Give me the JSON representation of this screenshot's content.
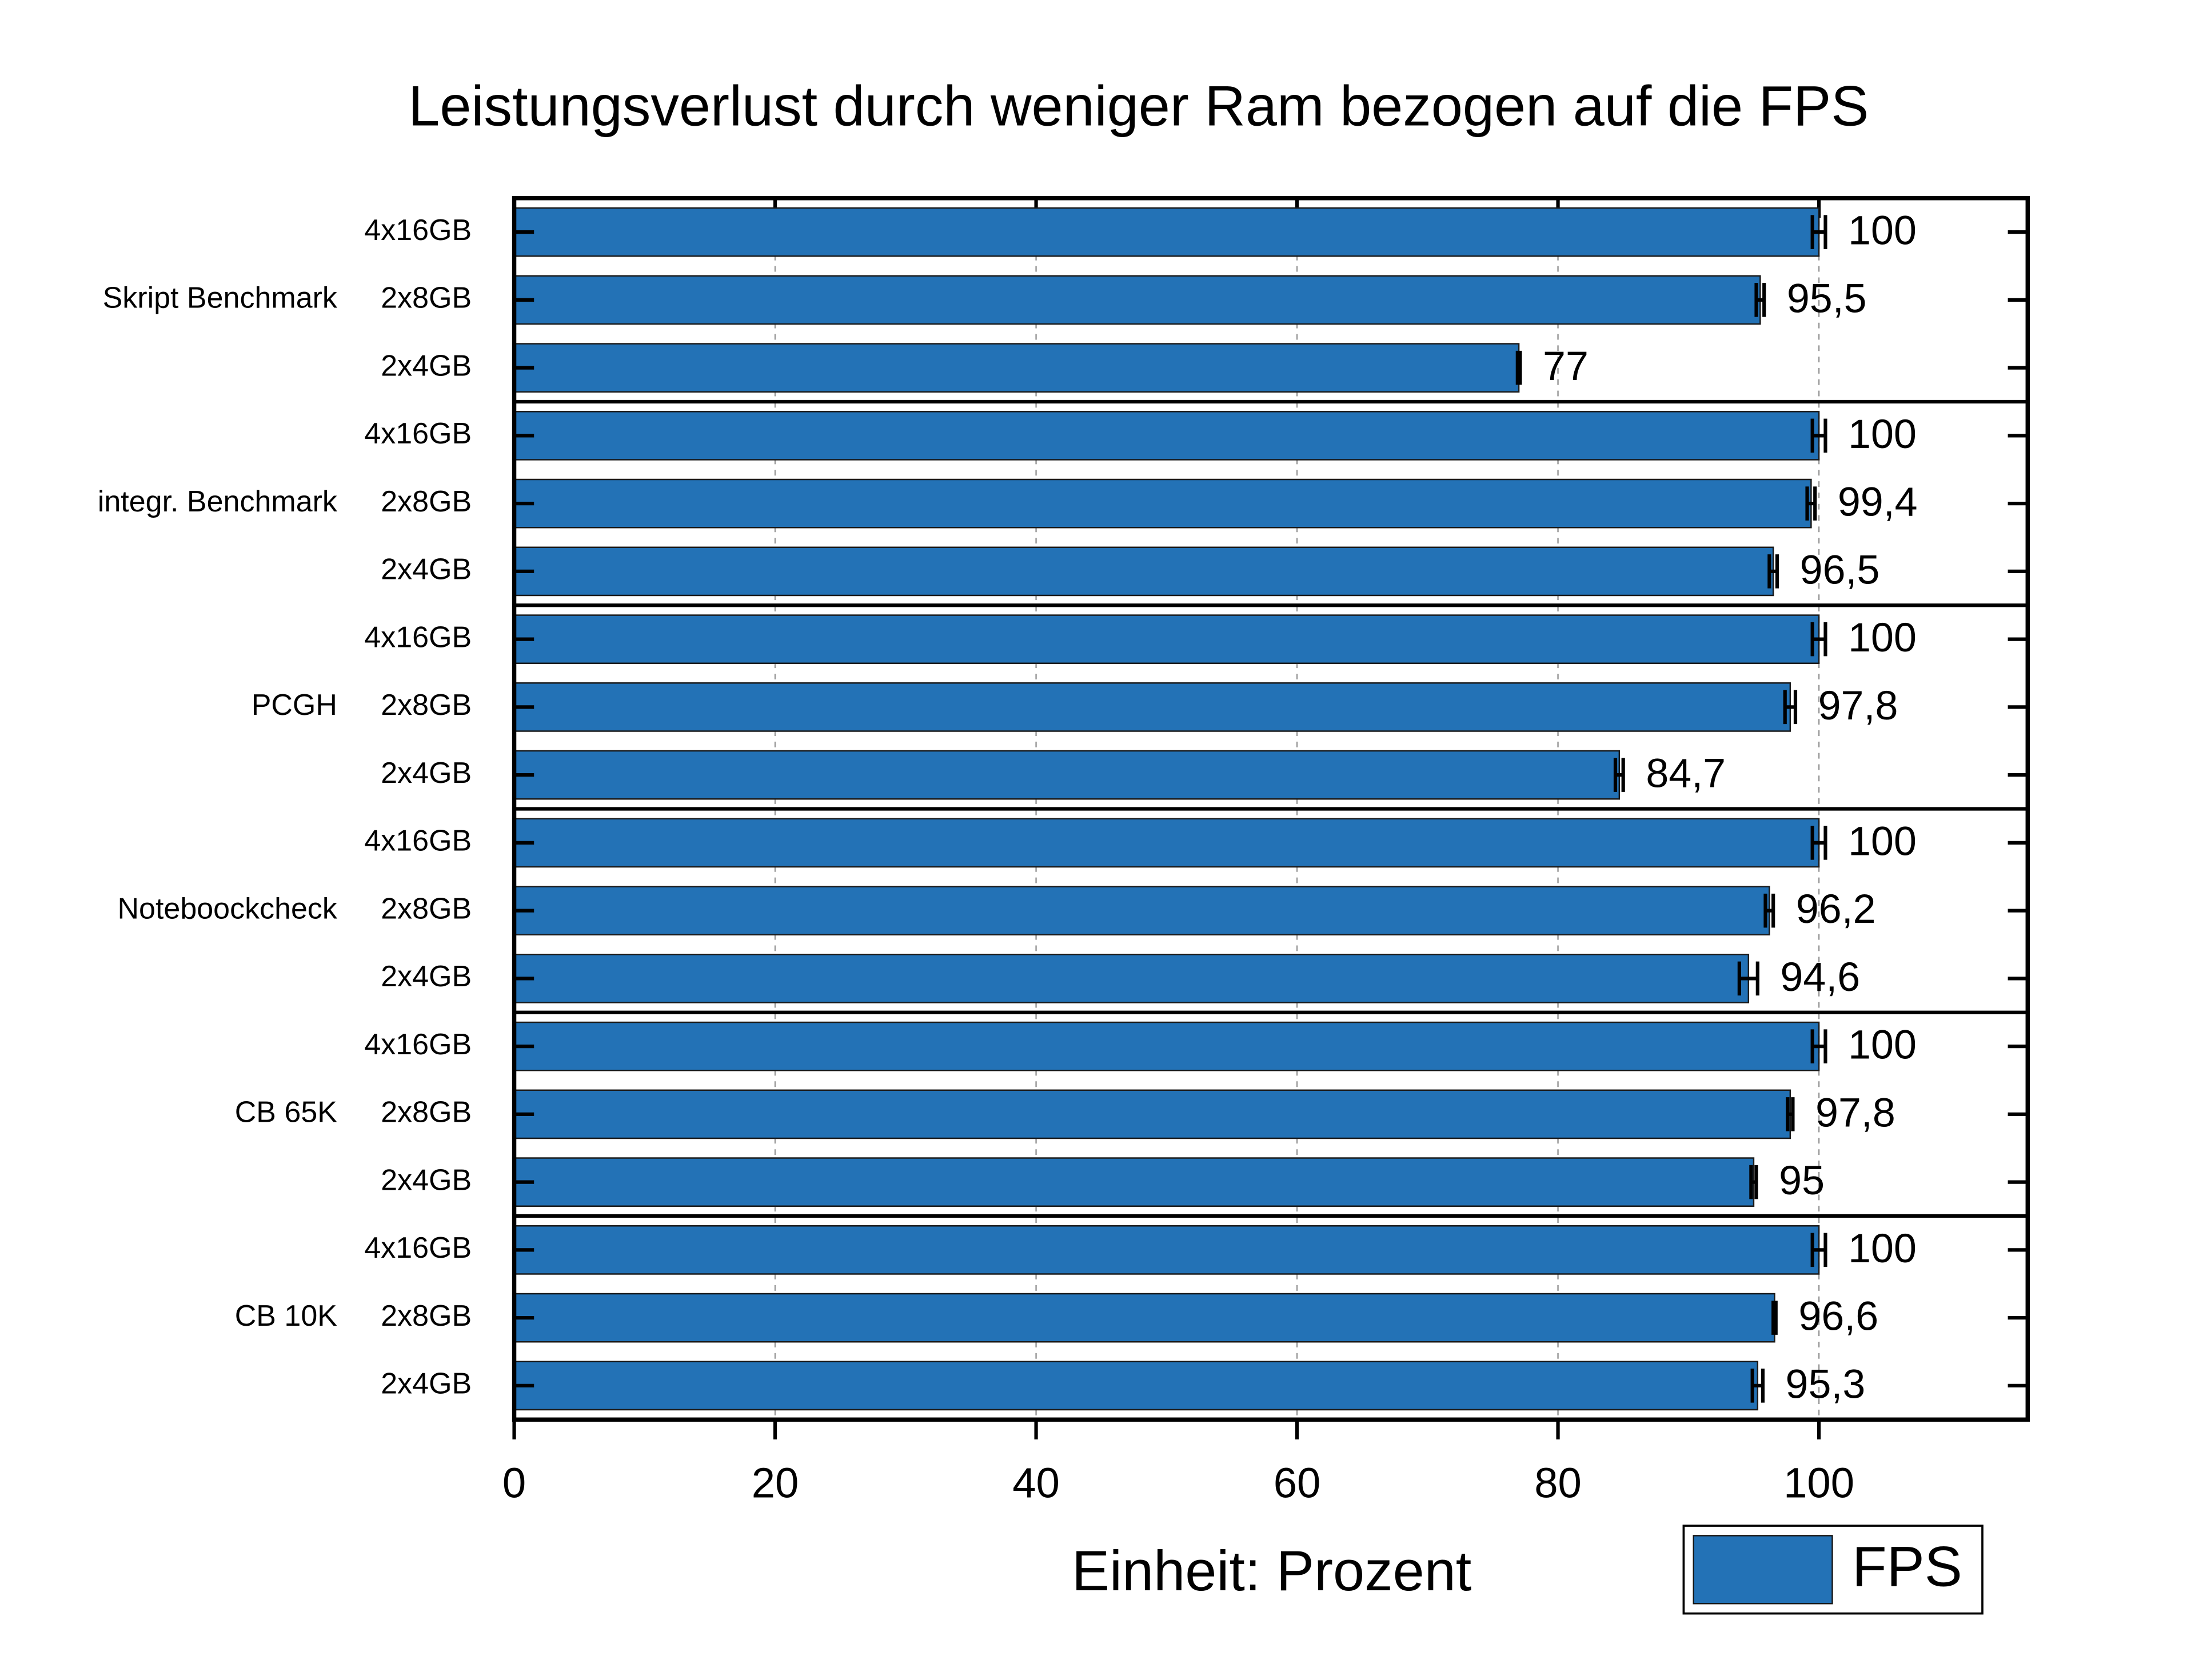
{
  "chart_data": {
    "type": "bar",
    "orientation": "horizontal",
    "title": "Leistungsverlust durch weniger Ram bezogen auf die FPS",
    "x_label": "Einheit: Prozent",
    "groups": [
      "Skript Benchmark",
      "integr. Benchmark",
      "PCGH",
      "Noteboockcheck",
      "CB 65K",
      "CB 10K"
    ],
    "categories": [
      "4x16GB",
      "2x8GB",
      "2x4GB",
      "4x16GB",
      "2x8GB",
      "2x4GB",
      "4x16GB",
      "2x8GB",
      "2x4GB",
      "4x16GB",
      "2x8GB",
      "2x4GB",
      "4x16GB",
      "2x8GB",
      "2x4GB",
      "4x16GB",
      "2x8GB",
      "2x4GB"
    ],
    "series": [
      {
        "name": "FPS",
        "color": "#2372b6",
        "values": [
          100,
          95.5,
          77,
          100,
          99.4,
          96.5,
          100,
          97.8,
          84.7,
          100,
          96.2,
          94.6,
          100,
          97.8,
          95,
          100,
          96.6,
          95.3
        ],
        "value_labels": [
          "100",
          "95,5",
          "77",
          "100",
          "99,4",
          "96,5",
          "100",
          "97,8",
          "84,7",
          "100",
          "96,2",
          "94,6",
          "100",
          "97,8",
          "95",
          "100",
          "96,6",
          "95,3"
        ],
        "errors": [
          0.5,
          0.3,
          0.1,
          0.5,
          0.3,
          0.3,
          0.5,
          0.4,
          0.3,
          0.5,
          0.3,
          0.7,
          0.5,
          0.2,
          0.2,
          0.5,
          0.1,
          0.4
        ]
      }
    ],
    "xlim": [
      0,
      116
    ],
    "xticks": [
      0,
      20,
      40,
      60,
      80,
      100
    ],
    "grid": true,
    "legend": "bottom-right"
  }
}
